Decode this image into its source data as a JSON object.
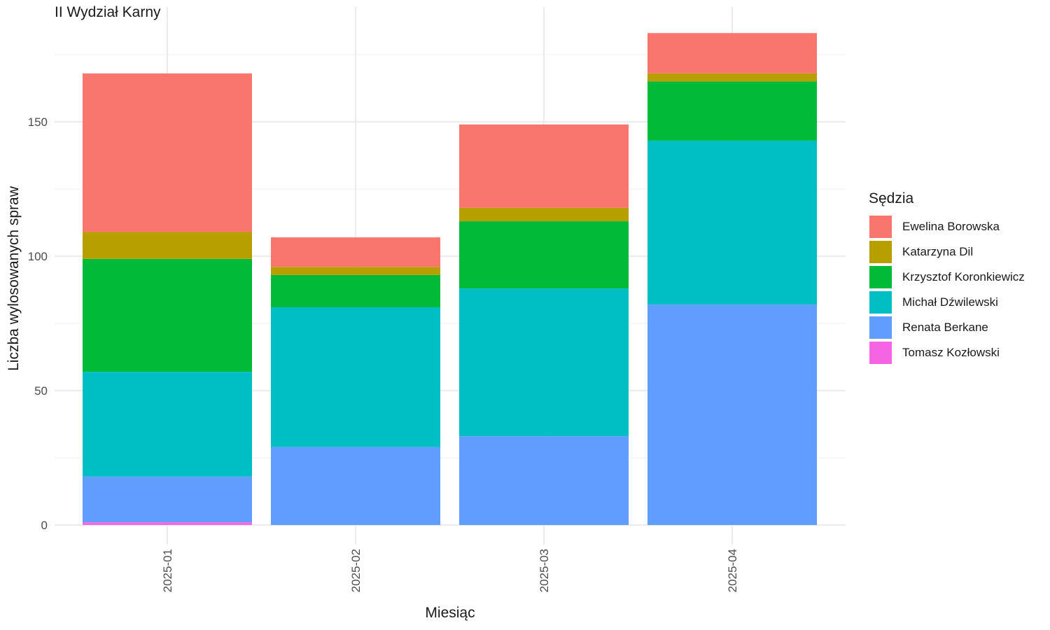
{
  "chart_data": {
    "type": "bar",
    "stacked": true,
    "title": "II Wydział Karny",
    "xlabel": "Miesiąc",
    "ylabel": "Liczba wylosowanych spraw",
    "categories": [
      "2025-01",
      "2025-02",
      "2025-03",
      "2025-04"
    ],
    "ylim": [
      0,
      190
    ],
    "yticks": [
      0,
      50,
      100,
      150
    ],
    "grid": true,
    "legend": {
      "title": "Sędzia",
      "position": "right"
    },
    "series": [
      {
        "name": "Tomasz Kozłowski",
        "color": "#F564E3",
        "values": [
          1,
          0,
          0,
          0
        ]
      },
      {
        "name": "Renata Berkane",
        "color": "#619CFF",
        "values": [
          17,
          29,
          33,
          82
        ]
      },
      {
        "name": "Michał Dźwilewski",
        "color": "#00BFC4",
        "values": [
          39,
          52,
          55,
          61
        ]
      },
      {
        "name": "Krzysztof Koronkiewicz",
        "color": "#00BA38",
        "values": [
          42,
          12,
          25,
          22
        ]
      },
      {
        "name": "Katarzyna Dil",
        "color": "#B79F00",
        "values": [
          10,
          3,
          5,
          3
        ]
      },
      {
        "name": "Ewelina Borowska",
        "color": "#F8766D",
        "values": [
          59,
          11,
          31,
          15
        ]
      }
    ]
  }
}
